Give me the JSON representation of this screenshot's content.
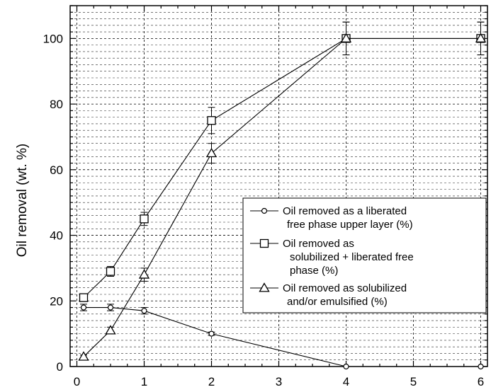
{
  "chart_data": {
    "type": "line",
    "title": "",
    "xlabel": "",
    "ylabel": "Oil removal (wt. %)",
    "xlim": [
      -0.1,
      6.1
    ],
    "ylim": [
      0,
      110
    ],
    "xticks": [
      0,
      1,
      2,
      3,
      4,
      5,
      6
    ],
    "yticks": [
      0,
      20,
      40,
      60,
      80,
      100
    ],
    "grid": true,
    "legend_position": "right",
    "series": [
      {
        "name": "Oil removed as a liberated free phase upper layer (%)",
        "legend_lines": [
          "Oil removed as a liberated",
          "free phase upper layer (%)"
        ],
        "marker": "circle",
        "x": [
          0.1,
          0.5,
          1,
          2,
          4,
          6
        ],
        "y": [
          18,
          18,
          17,
          10,
          0,
          0
        ],
        "err": [
          1,
          1,
          1,
          0.5,
          0,
          0
        ]
      },
      {
        "name": "Oil removed as solubilized + liberated free phase (%)",
        "legend_lines": [
          "Oil removed as",
          "solubilized + liberated free",
          "phase  (%)"
        ],
        "marker": "square",
        "x": [
          0.1,
          0.5,
          1,
          2,
          4,
          6
        ],
        "y": [
          21,
          29,
          45,
          75,
          100,
          100
        ],
        "err": [
          1,
          1.5,
          2,
          4,
          5,
          5
        ]
      },
      {
        "name": "Oil removed as solubilized and/or emulsified (%)",
        "legend_lines": [
          "Oil removed as solubilized",
          "and/or emulsified (%)"
        ],
        "marker": "triangle",
        "x": [
          0.1,
          0.5,
          1,
          2,
          4,
          6
        ],
        "y": [
          3,
          11,
          28,
          65,
          100,
          100
        ],
        "err": [
          0.5,
          1,
          2,
          3,
          5,
          5
        ]
      }
    ],
    "colors": {
      "line": "#000000",
      "grid": "#000000",
      "background": "#ffffff"
    }
  }
}
